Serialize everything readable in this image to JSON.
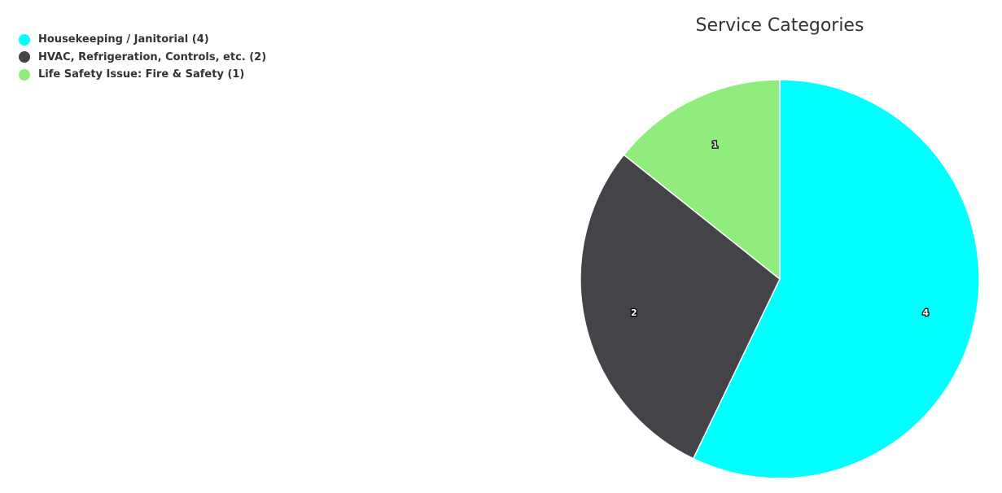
{
  "chart_data": {
    "type": "pie",
    "title": "Service Categories",
    "categories": [
      "Housekeeping / Janitorial",
      "HVAC, Refrigeration, Controls, etc.",
      "Life Safety Issue: Fire & Safety"
    ],
    "values": [
      4,
      2,
      1
    ],
    "colors": [
      "#00ffff",
      "#434348",
      "#90ed7d"
    ],
    "legend_position": "top-left",
    "data_labels": [
      "4",
      "2",
      "1"
    ]
  },
  "legend": {
    "items": [
      {
        "label": "Housekeeping / Janitorial (4)",
        "color": "#00ffff"
      },
      {
        "label": "HVAC, Refrigeration, Controls, etc. (2)",
        "color": "#434348"
      },
      {
        "label": "Life Safety Issue: Fire & Safety (1)",
        "color": "#90ed7d"
      }
    ]
  }
}
